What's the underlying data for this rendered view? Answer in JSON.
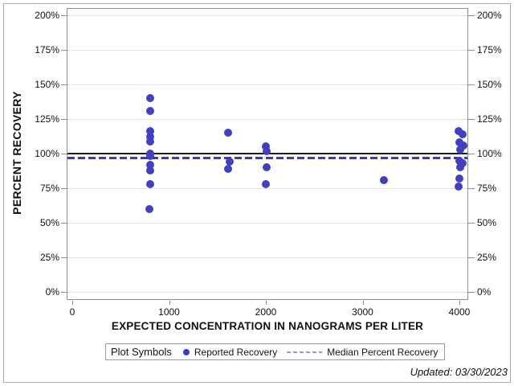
{
  "figure": {
    "updated_note": "Updated: 03/30/2023"
  },
  "chart_data": {
    "type": "scatter",
    "title": "",
    "xlabel": "EXPECTED CONCENTRATION IN NANOGRAMS PER LITER",
    "ylabel": "PERCENT RECOVERY",
    "grid": true,
    "x_axis": {
      "min": 0,
      "max": 4000,
      "ticks": [
        0,
        1000,
        2000,
        3000,
        4000
      ],
      "tick_labels": [
        "0",
        "1000",
        "2000",
        "3000",
        "4000"
      ]
    },
    "y_axis": {
      "min": 0,
      "max": 200,
      "ticks": [
        0,
        25,
        50,
        75,
        100,
        125,
        150,
        175,
        200
      ],
      "tick_labels": [
        "0%",
        "25%",
        "50%",
        "75%",
        "100%",
        "125%",
        "150%",
        "175%",
        "200%"
      ],
      "mirrored_right": true
    },
    "reference_lines": [
      {
        "name": "hundred-percent-reference",
        "y": 100,
        "style": "solid",
        "color": "#1c1c1c"
      },
      {
        "name": "median-percent-recovery",
        "y": 97,
        "style": "dashed",
        "color": "#3a39c3"
      }
    ],
    "series": [
      {
        "name": "Reported Recovery",
        "marker": "circle",
        "color": "#4140bf",
        "points": [
          {
            "x": 800,
            "y": 140,
            "dx": 1
          },
          {
            "x": 800,
            "y": 131,
            "dx": 1
          },
          {
            "x": 800,
            "y": 116,
            "dx": 1
          },
          {
            "x": 800,
            "y": 112,
            "dx": 1
          },
          {
            "x": 800,
            "y": 109,
            "dx": 1
          },
          {
            "x": 800,
            "y": 100,
            "dx": 1
          },
          {
            "x": 800,
            "y": 98,
            "dx": 1
          },
          {
            "x": 800,
            "y": 92,
            "dx": 1
          },
          {
            "x": 800,
            "y": 88,
            "dx": 1
          },
          {
            "x": 800,
            "y": 78,
            "dx": 1
          },
          {
            "x": 800,
            "y": 60,
            "dx": 0
          },
          {
            "x": 1600,
            "y": 115,
            "dx": 1
          },
          {
            "x": 1600,
            "y": 94,
            "dx": 3
          },
          {
            "x": 1600,
            "y": 89,
            "dx": 1
          },
          {
            "x": 2000,
            "y": 105,
            "dx": 0
          },
          {
            "x": 2000,
            "y": 102,
            "dx": 1
          },
          {
            "x": 2000,
            "y": 90,
            "dx": 1
          },
          {
            "x": 2000,
            "y": 78,
            "dx": 0
          },
          {
            "x": 3200,
            "y": 81,
            "dx": 2
          },
          {
            "x": 4000,
            "y": 116,
            "dx": -1
          },
          {
            "x": 4000,
            "y": 114,
            "dx": 4
          },
          {
            "x": 4000,
            "y": 108,
            "dx": 0
          },
          {
            "x": 4000,
            "y": 106,
            "dx": 5
          },
          {
            "x": 4000,
            "y": 103,
            "dx": 1
          },
          {
            "x": 4000,
            "y": 95,
            "dx": 0
          },
          {
            "x": 4000,
            "y": 93,
            "dx": 4
          },
          {
            "x": 4000,
            "y": 90,
            "dx": 1
          },
          {
            "x": 4000,
            "y": 82,
            "dx": 0
          },
          {
            "x": 4000,
            "y": 76,
            "dx": -1
          }
        ]
      }
    ],
    "legend": {
      "title": "Plot Symbols",
      "position": "bottom",
      "entries": [
        {
          "label": "Reported Recovery",
          "symbol": "dot",
          "color": "#3c3bbd"
        },
        {
          "label": "Median Percent Recovery",
          "symbol": "dashed-line",
          "color": "#9a99d8"
        }
      ]
    }
  },
  "colors": {
    "gridline": "#e3e3e3",
    "plot_border": "#8f8f8f",
    "outer_border": "#ababab",
    "marker": "#4140bf",
    "median_line": "#3a39c3",
    "reference_line": "#1c1c1c"
  }
}
